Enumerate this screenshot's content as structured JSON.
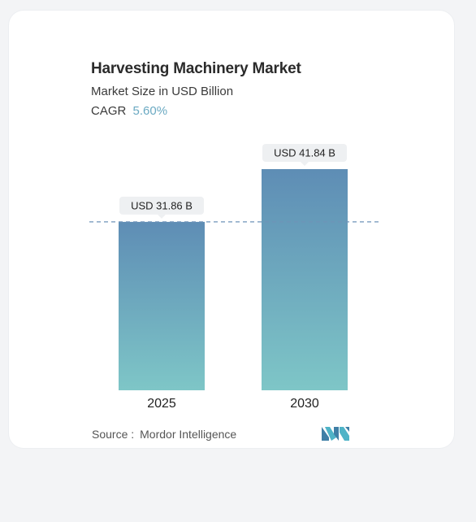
{
  "header": {
    "title": "Harvesting Machinery Market",
    "subtitle": "Market Size in USD Billion",
    "cagr_label": "CAGR",
    "cagr_value": "5.60%"
  },
  "colors": {
    "bar_top": "#5e8db5",
    "bar_bottom": "#7ec6c7",
    "dash_line": "#6f93b8",
    "label_bg": "#eef0f2",
    "cagr_accent": "#6aa9c2"
  },
  "chart_data": {
    "type": "bar",
    "categories": [
      "2025",
      "2030"
    ],
    "values": [
      31.86,
      41.84
    ],
    "value_labels": [
      "USD 31.86 B",
      "USD 41.84 B"
    ],
    "ylim": [
      0,
      41.84
    ],
    "reference_line": 31.86,
    "grid": false,
    "legend": "none"
  },
  "footer": {
    "source_label": "Source :",
    "source_value": "Mordor Intelligence"
  },
  "logo": {
    "icon": "mordor-intelligence-logo-icon"
  }
}
